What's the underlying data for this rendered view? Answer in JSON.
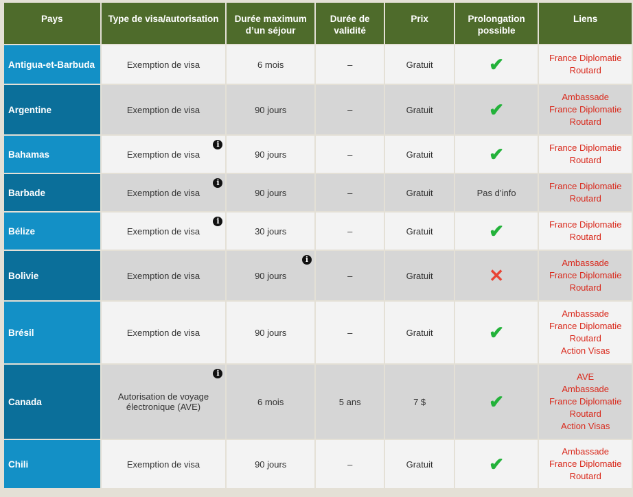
{
  "headers": [
    "Pays",
    "Type de visa/autorisation",
    "Durée maximum d’un séjour",
    "Durée de validité",
    "Prix",
    "Prolongation possible",
    "Liens"
  ],
  "rows": [
    {
      "country": "Antigua-et-Barbuda",
      "type": "Exemption de visa",
      "duration": "6 mois",
      "validity": "–",
      "price": "Gratuit",
      "extension": "yes",
      "extension_text": "",
      "links": [
        "France Diplomatie",
        "Routard"
      ]
    },
    {
      "country": "Argentine",
      "type": "Exemption de visa",
      "duration": "90 jours",
      "validity": "–",
      "price": "Gratuit",
      "extension": "yes",
      "extension_text": "",
      "links": [
        "Ambassade",
        "France Diplomatie",
        "Routard"
      ]
    },
    {
      "country": "Bahamas",
      "type": "Exemption de visa",
      "duration": "90 jours",
      "validity": "–",
      "price": "Gratuit",
      "extension": "yes",
      "extension_text": "",
      "links": [
        "France Diplomatie",
        "Routard"
      ],
      "info_on": "type"
    },
    {
      "country": "Barbade",
      "type": "Exemption de visa",
      "duration": "90 jours",
      "validity": "–",
      "price": "Gratuit",
      "extension": "text",
      "extension_text": "Pas d’info",
      "links": [
        "France Diplomatie",
        "Routard"
      ],
      "info_on": "type"
    },
    {
      "country": "Bélize",
      "type": "Exemption de visa",
      "duration": "30 jours",
      "validity": "–",
      "price": "Gratuit",
      "extension": "yes",
      "extension_text": "",
      "links": [
        "France Diplomatie",
        "Routard"
      ],
      "info_on": "type"
    },
    {
      "country": "Bolivie",
      "type": "Exemption de visa",
      "duration": "90 jours",
      "validity": "–",
      "price": "Gratuit",
      "extension": "no",
      "extension_text": "",
      "links": [
        "Ambassade",
        "France Diplomatie",
        "Routard"
      ],
      "info_on": "duration"
    },
    {
      "country": "Brésil",
      "type": "Exemption de visa",
      "duration": "90 jours",
      "validity": "–",
      "price": "Gratuit",
      "extension": "yes",
      "extension_text": "",
      "links": [
        "Ambassade",
        "France Diplomatie",
        "Routard",
        "Action Visas"
      ]
    },
    {
      "country": "Canada",
      "type": "Autorisation de voyage électronique (AVE)",
      "duration": "6 mois",
      "validity": "5 ans",
      "price": "7 $",
      "extension": "yes",
      "extension_text": "",
      "links": [
        "AVE",
        "Ambassade",
        "France Diplomatie",
        "Routard",
        "Action Visas"
      ],
      "info_on": "type"
    },
    {
      "country": "Chili",
      "type": "Exemption de visa",
      "duration": "90 jours",
      "validity": "–",
      "price": "Gratuit",
      "extension": "yes",
      "extension_text": "",
      "links": [
        "Ambassade",
        "France Diplomatie",
        "Routard"
      ]
    }
  ],
  "icons": {
    "info": "info-icon",
    "yes": "checkmark-icon",
    "no": "cross-icon"
  },
  "colors": {
    "header": "#4e6b2b",
    "country_light": "#1390c6",
    "country_dark": "#0b6f9a",
    "link": "#d9291c",
    "check": "#23b23a",
    "cross": "#e84535"
  }
}
